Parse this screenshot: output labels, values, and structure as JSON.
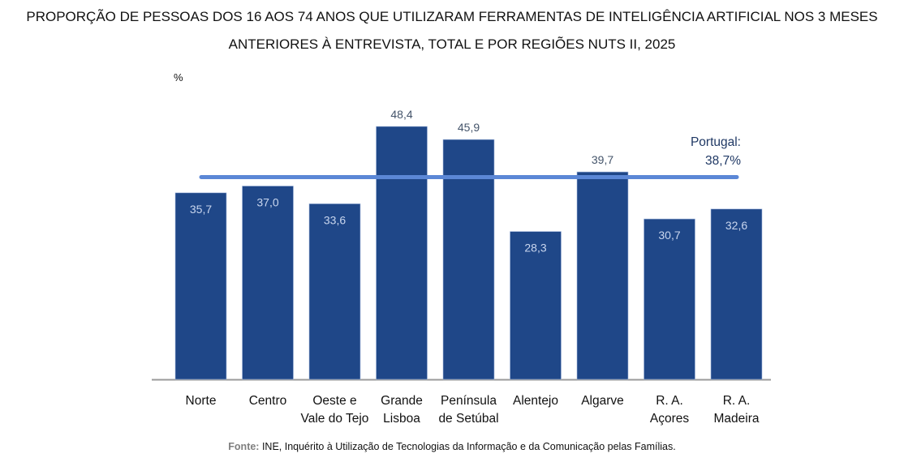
{
  "title_lines": [
    "PROPORÇÃO DE PESSOAS DOS 16 AOS 74 ANOS QUE UTILIZARAM FERRAMENTAS DE INTELIGÊNCIA ARTIFICIAL NOS 3 MESES",
    "ANTERIORES À ENTREVISTA, TOTAL E POR REGIÕES NUTS II, 2025"
  ],
  "unit_label": "%",
  "source": {
    "key": "Fonte:",
    "text": " INE, Inquérito à Utilização de Tecnologias da Informação e da Comunicação pelas Famílias."
  },
  "colors": {
    "bar": "#1f4788",
    "reference_line": "#5b87d6",
    "axis": "#9a9a9a"
  },
  "chart_data": {
    "type": "bar",
    "title": "PROPORÇÃO DE PESSOAS DOS 16 AOS 74 ANOS QUE UTILIZARAM FERRAMENTAS DE INTELIGÊNCIA ARTIFICIAL NOS 3 MESES ANTERIORES À ENTREVISTA, TOTAL E POR REGIÕES NUTS II, 2025",
    "ylabel": "%",
    "xlabel": "",
    "ylim": [
      0,
      55
    ],
    "grid": false,
    "categories": [
      [
        "Norte"
      ],
      [
        "Centro"
      ],
      [
        "Oeste e",
        "Vale do Tejo"
      ],
      [
        "Grande",
        "Lisboa"
      ],
      [
        "Península",
        "de Setúbal"
      ],
      [
        "Alentejo"
      ],
      [
        "Algarve"
      ],
      [
        "R. A.",
        "Açores"
      ],
      [
        "R. A.",
        "Madeira"
      ]
    ],
    "values": [
      35.7,
      37.0,
      33.6,
      48.4,
      45.9,
      28.3,
      39.7,
      30.7,
      32.6
    ],
    "value_labels": [
      "35,7",
      "37,0",
      "33,6",
      "48,4",
      "45,9",
      "28,3",
      "39,7",
      "30,7",
      "32,6"
    ],
    "reference_line": {
      "value": 38.7,
      "label_line1": "Portugal:",
      "label_line2": "38,7%"
    }
  }
}
